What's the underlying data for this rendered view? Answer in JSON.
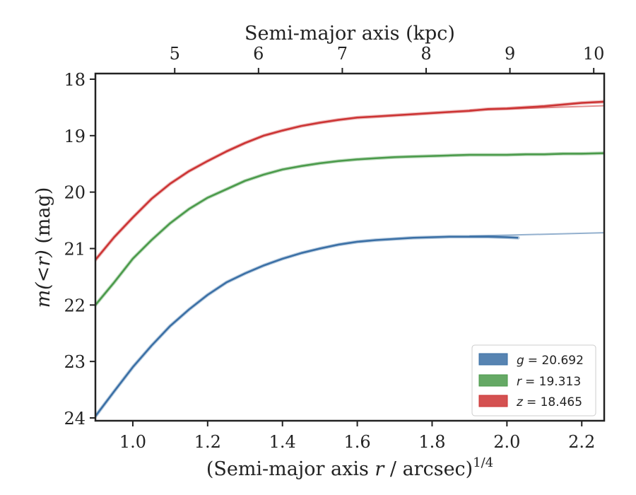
{
  "chart_data": {
    "type": "line",
    "title": "",
    "xlabel": "(Semi-major axis r / arcsec)^1/4",
    "xlabel_parts": {
      "prefix": "(Semi-major axis ",
      "var": "r",
      "middle": " / arcsec)",
      "exponent": "1/4"
    },
    "ylabel": "m(<r) (mag)",
    "ylabel_parts": {
      "math": "m(<r)",
      "unit": " (mag)"
    },
    "top_xlabel": "Semi-major axis (kpc)",
    "xlim": [
      0.9,
      2.26
    ],
    "ylim": [
      24.05,
      17.9
    ],
    "y_inverted": true,
    "x_ticks": [
      {
        "value": 1.0,
        "label": "1.0"
      },
      {
        "value": 1.2,
        "label": "1.2"
      },
      {
        "value": 1.4,
        "label": "1.4"
      },
      {
        "value": 1.6,
        "label": "1.6"
      },
      {
        "value": 1.8,
        "label": "1.8"
      },
      {
        "value": 2.0,
        "label": "2.0"
      },
      {
        "value": 2.2,
        "label": "2.2"
      }
    ],
    "y_ticks": [
      {
        "value": 18,
        "label": "18"
      },
      {
        "value": 19,
        "label": "19"
      },
      {
        "value": 20,
        "label": "20"
      },
      {
        "value": 21,
        "label": "21"
      },
      {
        "value": 22,
        "label": "22"
      },
      {
        "value": 23,
        "label": "23"
      },
      {
        "value": 24,
        "label": "24"
      }
    ],
    "top_ticks": [
      {
        "value": 1.112,
        "label": "5"
      },
      {
        "value": 1.336,
        "label": "6"
      },
      {
        "value": 1.56,
        "label": "7"
      },
      {
        "value": 1.784,
        "label": "8"
      },
      {
        "value": 2.008,
        "label": "9"
      },
      {
        "value": 2.232,
        "label": "10"
      }
    ],
    "grid": false,
    "legend_position": "lower-right",
    "series": [
      {
        "name": "g = 20.692",
        "legend_var": "g",
        "legend_value": "= 20.692",
        "color": "#3a6fa5",
        "x": [
          0.9,
          0.95,
          1.0,
          1.05,
          1.1,
          1.15,
          1.2,
          1.25,
          1.3,
          1.35,
          1.4,
          1.45,
          1.5,
          1.55,
          1.6,
          1.65,
          1.7,
          1.75,
          1.8,
          1.85,
          1.9,
          1.95,
          2.0,
          2.03
        ],
        "values": [
          23.97,
          23.53,
          23.1,
          22.72,
          22.37,
          22.08,
          21.82,
          21.6,
          21.44,
          21.3,
          21.18,
          21.08,
          21.0,
          20.93,
          20.88,
          20.85,
          20.83,
          20.81,
          20.8,
          20.79,
          20.79,
          20.79,
          20.8,
          20.81
        ],
        "model_x": [
          1.9,
          2.26
        ],
        "model_values": [
          20.78,
          20.72
        ]
      },
      {
        "name": "r = 19.313",
        "legend_var": "r",
        "legend_value": "= 19.313",
        "color": "#4a9a4a",
        "x": [
          0.9,
          0.95,
          1.0,
          1.05,
          1.1,
          1.15,
          1.2,
          1.25,
          1.3,
          1.35,
          1.4,
          1.45,
          1.5,
          1.55,
          1.6,
          1.65,
          1.7,
          1.75,
          1.8,
          1.85,
          1.9,
          1.95,
          2.0,
          2.05,
          2.1,
          2.15,
          2.2,
          2.26
        ],
        "values": [
          22.0,
          21.6,
          21.18,
          20.85,
          20.55,
          20.3,
          20.1,
          19.95,
          19.8,
          19.69,
          19.6,
          19.54,
          19.49,
          19.45,
          19.42,
          19.4,
          19.38,
          19.37,
          19.36,
          19.35,
          19.34,
          19.34,
          19.34,
          19.33,
          19.33,
          19.32,
          19.32,
          19.31
        ],
        "model_x": [
          2.0,
          2.26
        ],
        "model_values": [
          19.34,
          19.31
        ]
      },
      {
        "name": "z = 18.465",
        "legend_var": "z",
        "legend_value": "= 18.465",
        "color": "#cc3333",
        "x": [
          0.9,
          0.95,
          1.0,
          1.05,
          1.1,
          1.15,
          1.2,
          1.25,
          1.3,
          1.35,
          1.4,
          1.45,
          1.5,
          1.55,
          1.6,
          1.65,
          1.7,
          1.75,
          1.8,
          1.85,
          1.9,
          1.95,
          2.0,
          2.05,
          2.1,
          2.15,
          2.2,
          2.26
        ],
        "values": [
          21.2,
          20.8,
          20.45,
          20.12,
          19.85,
          19.63,
          19.45,
          19.28,
          19.13,
          19.0,
          18.91,
          18.83,
          18.77,
          18.72,
          18.68,
          18.66,
          18.64,
          18.62,
          18.6,
          18.58,
          18.56,
          18.53,
          18.52,
          18.5,
          18.48,
          18.45,
          18.42,
          18.4
        ],
        "model_x": [
          1.9,
          2.26
        ],
        "model_values": [
          18.55,
          18.47
        ]
      }
    ]
  }
}
